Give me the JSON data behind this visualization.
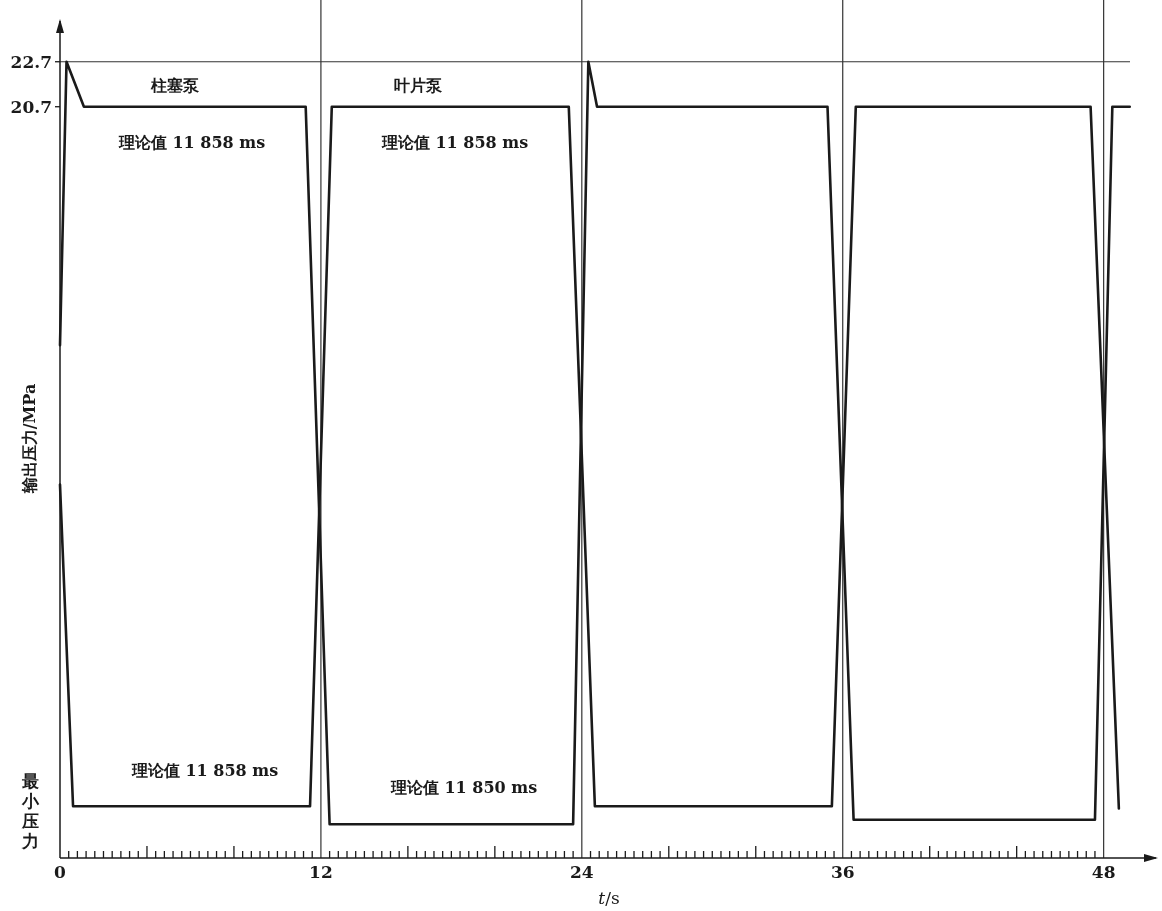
{
  "chart_data": {
    "type": "line",
    "xlabel": "*t*/s",
    "ylabel": "输出压力/MPa",
    "xlim": [
      0,
      50.5
    ],
    "ylim": [
      -12.7,
      24.6
    ],
    "xticks": [
      0,
      {
        "value": 0.4,
        "label": null
      },
      {
        "value": 0.8,
        "label": null
      },
      {
        "value": 1.2,
        "label": null
      },
      {
        "value": 1.6,
        "label": null
      },
      {
        "value": 2,
        "label": null
      },
      {
        "value": 2.4,
        "label": null
      },
      {
        "value": 2.8,
        "label": null
      },
      {
        "value": 3.2,
        "label": null
      },
      {
        "value": 3.6,
        "label": null
      },
      {
        "value": 4,
        "label": null
      },
      {
        "value": 4.4,
        "label": null
      },
      {
        "value": 4.8,
        "label": null
      },
      {
        "value": 5.2,
        "label": null
      },
      {
        "value": 5.6,
        "label": null
      },
      {
        "value": 6,
        "label": null
      },
      {
        "value": 6.4,
        "label": null
      },
      {
        "value": 6.8,
        "label": null
      },
      {
        "value": 7.2,
        "label": null
      },
      {
        "value": 7.6,
        "label": null
      },
      {
        "value": 8,
        "label": null
      },
      {
        "value": 8.4,
        "label": null
      },
      {
        "value": 8.8,
        "label": null
      },
      {
        "value": 9.2,
        "label": null
      },
      {
        "value": 9.6,
        "label": null
      },
      {
        "value": 10,
        "label": null
      },
      {
        "value": 10.4,
        "label": null
      },
      {
        "value": 10.8,
        "label": null
      },
      {
        "value": 11.2,
        "label": null
      },
      {
        "value": 11.6,
        "label": null
      },
      12,
      {
        "value": 12.4,
        "label": null
      },
      {
        "value": 12.8,
        "label": null
      },
      {
        "value": 13.2,
        "label": null
      },
      {
        "value": 13.6,
        "label": null
      },
      {
        "value": 14,
        "label": null
      },
      {
        "value": 14.4,
        "label": null
      },
      {
        "value": 14.8,
        "label": null
      },
      {
        "value": 15.2,
        "label": null
      },
      {
        "value": 15.6,
        "label": null
      },
      {
        "value": 16,
        "label": null
      },
      {
        "value": 16.4,
        "label": null
      },
      {
        "value": 16.8,
        "label": null
      },
      {
        "value": 17.2,
        "label": null
      },
      {
        "value": 17.6,
        "label": null
      },
      {
        "value": 18,
        "label": null
      },
      {
        "value": 18.4,
        "label": null
      },
      {
        "value": 18.8,
        "label": null
      },
      {
        "value": 19.2,
        "label": null
      },
      {
        "value": 19.6,
        "label": null
      },
      {
        "value": 20,
        "label": null
      },
      {
        "value": 20.4,
        "label": null
      },
      {
        "value": 20.8,
        "label": null
      },
      {
        "value": 21.2,
        "label": null
      },
      {
        "value": 21.6,
        "label": null
      },
      {
        "value": 22,
        "label": null
      },
      {
        "value": 22.4,
        "label": null
      },
      {
        "value": 22.8,
        "label": null
      },
      {
        "value": 23.2,
        "label": null
      },
      {
        "value": 23.6,
        "label": null
      },
      24,
      {
        "value": 24.4,
        "label": null
      },
      {
        "value": 24.8,
        "label": null
      },
      {
        "value": 25.2,
        "label": null
      },
      {
        "value": 25.6,
        "label": null
      },
      {
        "value": 26,
        "label": null
      },
      {
        "value": 26.4,
        "label": null
      },
      {
        "value": 26.8,
        "label": null
      },
      {
        "value": 27.2,
        "label": null
      },
      {
        "value": 27.6,
        "label": null
      },
      {
        "value": 28,
        "label": null
      },
      {
        "value": 28.4,
        "label": null
      },
      {
        "value": 28.8,
        "label": null
      },
      {
        "value": 29.2,
        "label": null
      },
      {
        "value": 29.6,
        "label": null
      },
      {
        "value": 30,
        "label": null
      },
      {
        "value": 30.4,
        "label": null
      },
      {
        "value": 30.8,
        "label": null
      },
      {
        "value": 31.2,
        "label": null
      },
      {
        "value": 31.6,
        "label": null
      },
      {
        "value": 32,
        "label": null
      },
      {
        "value": 32.4,
        "label": null
      },
      {
        "value": 32.8,
        "label": null
      },
      {
        "value": 33.2,
        "label": null
      },
      {
        "value": 33.6,
        "label": null
      },
      {
        "value": 34,
        "label": null
      },
      {
        "value": 34.4,
        "label": null
      },
      {
        "value": 34.8,
        "label": null
      },
      {
        "value": 35.2,
        "label": null
      },
      {
        "value": 35.6,
        "label": null
      },
      36,
      {
        "value": 36.4,
        "label": null
      },
      {
        "value": 36.8,
        "label": null
      },
      {
        "value": 37.2,
        "label": null
      },
      {
        "value": 37.6,
        "label": null
      },
      {
        "value": 38,
        "label": null
      },
      {
        "value": 38.4,
        "label": null
      },
      {
        "value": 38.8,
        "label": null
      },
      {
        "value": 39.2,
        "label": null
      },
      {
        "value": 39.6,
        "label": null
      },
      {
        "value": 40,
        "label": null
      },
      {
        "value": 40.4,
        "label": null
      },
      {
        "value": 40.8,
        "label": null
      },
      {
        "value": 41.2,
        "label": null
      },
      {
        "value": 41.6,
        "label": null
      },
      {
        "value": 42,
        "label": null
      },
      {
        "value": 42.4,
        "label": null
      },
      {
        "value": 42.8,
        "label": null
      },
      {
        "value": 43.2,
        "label": null
      },
      {
        "value": 43.6,
        "label": null
      },
      {
        "value": 44,
        "label": null
      },
      {
        "value": 44.4,
        "label": null
      },
      {
        "value": 44.8,
        "label": null
      },
      {
        "value": 45.2,
        "label": null
      },
      {
        "value": 45.6,
        "label": null
      },
      {
        "value": 46,
        "label": null
      },
      {
        "value": 46.4,
        "label": null
      },
      {
        "value": 46.8,
        "label": null
      },
      {
        "value": 47.2,
        "label": null
      },
      {
        "value": 47.6,
        "label": null
      },
      48
    ],
    "yticks": [
      22.7,
      20.7,
      {
        "value": -10.6,
        "label": "最小压力"
      }
    ],
    "line_style": "solid",
    "series": [
      {
        "color": "#1a1a1a",
        "x": [
          0,
          0.3,
          1.1,
          11.3,
          12.4,
          23.6,
          24.3,
          24.7,
          35.3,
          36.5,
          47.6,
          48.4,
          49.2
        ],
        "values": [
          10.1,
          22.7,
          20.7,
          20.7,
          -11.2,
          -11.2,
          22.7,
          20.7,
          20.7,
          -11.0,
          -11.0,
          20.7,
          20.7
        ]
      },
      {
        "color": "#1a1a1a",
        "x": [
          0,
          0.6,
          11.5,
          12.5,
          23.4,
          24.6,
          35.5,
          36.6,
          47.4,
          48.7
        ],
        "values": [
          3.9,
          -10.4,
          -10.4,
          20.7,
          20.7,
          -10.4,
          -10.4,
          20.7,
          20.7,
          -10.5
        ]
      }
    ],
    "ref_lines": [
      {
        "axis": "y",
        "value": 22.7,
        "label": null
      },
      {
        "axis": "x",
        "value": 12,
        "label": null
      },
      {
        "axis": "x",
        "value": 24,
        "label": null
      },
      {
        "axis": "x",
        "value": 36,
        "label": null
      },
      {
        "axis": "x",
        "value": 48,
        "label": null
      }
    ],
    "annotations": [
      "柱塞泵",
      "叶片泵",
      "理论值 11 858 ms",
      "理论值 11 858 ms",
      "理论值 11 858 ms",
      "理论值 11 850 ms"
    ]
  }
}
